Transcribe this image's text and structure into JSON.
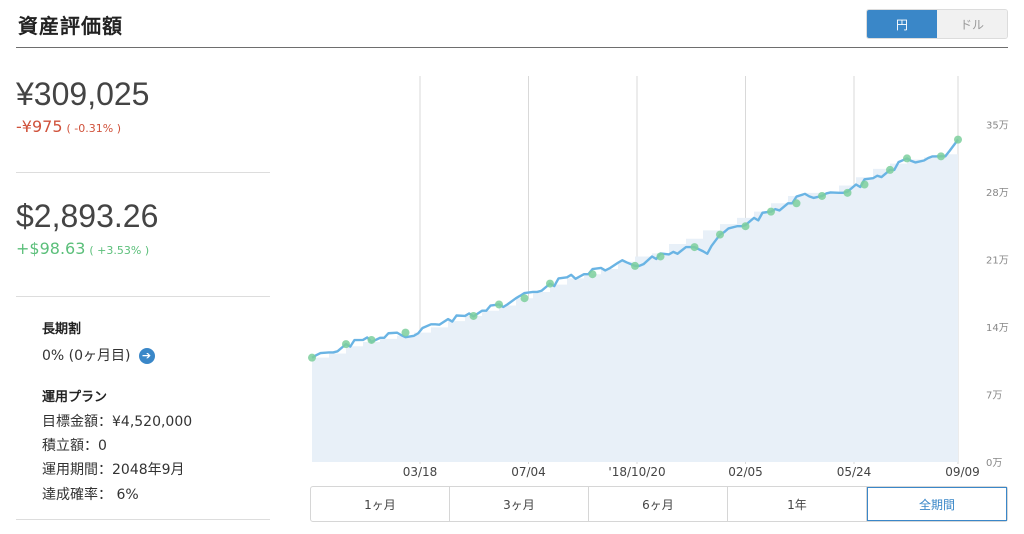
{
  "header": {
    "title": "資産評価額",
    "currency_options": [
      "円",
      "ドル"
    ],
    "selected_currency": "円"
  },
  "left": {
    "jpy": {
      "amount": "¥309,025",
      "change": "-¥975",
      "change_pct": "( -0.31% )"
    },
    "usd": {
      "amount": "$2,893.26",
      "change": "+$98.63",
      "change_pct": "( +3.53% )"
    },
    "long_term": {
      "heading": "長期割",
      "value": "0% (0ヶ月目)"
    },
    "plan": {
      "heading": "運用プラン",
      "rows": [
        "目標金額：¥4,520,000",
        "積立額：0",
        "運用期間：2048年9月",
        "達成確率： 6%"
      ]
    }
  },
  "range_tabs": [
    "1ヶ月",
    "3ヶ月",
    "6ヶ月",
    "1年",
    "全期間"
  ],
  "selected_range": "全期間",
  "colors": {
    "accent": "#3a87c8",
    "line": "#6ab4e4",
    "area": "#e8f0f8",
    "marker": "#7ccf9c",
    "negative": "#d0523b",
    "positive": "#5bbf7a"
  },
  "chart_data": {
    "type": "area",
    "x_tick_labels": [
      "03/18",
      "07/04",
      "'18/10/20",
      "02/05",
      "05/24",
      "09/09"
    ],
    "y_tick_labels": [
      "0万",
      "7万",
      "14万",
      "21万",
      "28万",
      "35万"
    ],
    "ylim": [
      0,
      370000
    ],
    "grid": true,
    "y_axis_side": "right",
    "series": [
      {
        "values": [
          [
            0,
            100000
          ],
          [
            10,
            105000
          ],
          [
            20,
            113000
          ],
          [
            30,
            117000
          ],
          [
            40,
            119000
          ],
          [
            50,
            124000
          ],
          [
            60,
            121000
          ],
          [
            70,
            132000
          ],
          [
            80,
            137000
          ],
          [
            90,
            140000
          ],
          [
            100,
            145000
          ],
          [
            110,
            151000
          ],
          [
            120,
            157000
          ],
          [
            130,
            163000
          ],
          [
            140,
            171000
          ],
          [
            150,
            177000
          ],
          [
            160,
            180000
          ],
          [
            170,
            186000
          ],
          [
            180,
            191000
          ],
          [
            190,
            188000
          ],
          [
            200,
            197000
          ],
          [
            210,
            199000
          ],
          [
            220,
            206000
          ],
          [
            230,
            202000
          ],
          [
            240,
            218000
          ],
          [
            250,
            226000
          ],
          [
            260,
            234000
          ],
          [
            270,
            240000
          ],
          [
            280,
            248000
          ],
          [
            290,
            257000
          ],
          [
            300,
            255000
          ],
          [
            310,
            258000
          ],
          [
            320,
            266000
          ],
          [
            330,
            272000
          ],
          [
            340,
            280000
          ],
          [
            350,
            291000
          ],
          [
            360,
            289000
          ],
          [
            370,
            293000
          ],
          [
            380,
            309025
          ]
        ],
        "benchmark": [
          [
            0,
            100000
          ],
          [
            10,
            104000
          ],
          [
            20,
            111000
          ],
          [
            30,
            115000
          ],
          [
            40,
            118000
          ],
          [
            50,
            121000
          ],
          [
            60,
            124000
          ],
          [
            70,
            129000
          ],
          [
            80,
            135000
          ],
          [
            90,
            140000
          ],
          [
            100,
            145000
          ],
          [
            110,
            150000
          ],
          [
            120,
            157000
          ],
          [
            130,
            163000
          ],
          [
            140,
            170000
          ],
          [
            150,
            176000
          ],
          [
            160,
            180000
          ],
          [
            170,
            185000
          ],
          [
            180,
            192000
          ],
          [
            190,
            197000
          ],
          [
            200,
            200000
          ],
          [
            210,
            209000
          ],
          [
            220,
            214000
          ],
          [
            230,
            222000
          ],
          [
            240,
            228000
          ],
          [
            250,
            234000
          ],
          [
            260,
            240000
          ],
          [
            270,
            248000
          ],
          [
            280,
            255000
          ],
          [
            290,
            258000
          ],
          [
            300,
            258000
          ],
          [
            310,
            265000
          ],
          [
            320,
            273000
          ],
          [
            330,
            281000
          ],
          [
            340,
            286000
          ],
          [
            350,
            290000
          ],
          [
            360,
            292000
          ],
          [
            370,
            295000
          ],
          [
            380,
            300000
          ]
        ]
      }
    ],
    "markers": [
      0,
      20,
      35,
      55,
      95,
      110,
      125,
      140,
      165,
      190,
      205,
      225,
      240,
      255,
      270,
      285,
      300,
      315,
      325,
      340,
      350,
      370,
      380
    ]
  }
}
